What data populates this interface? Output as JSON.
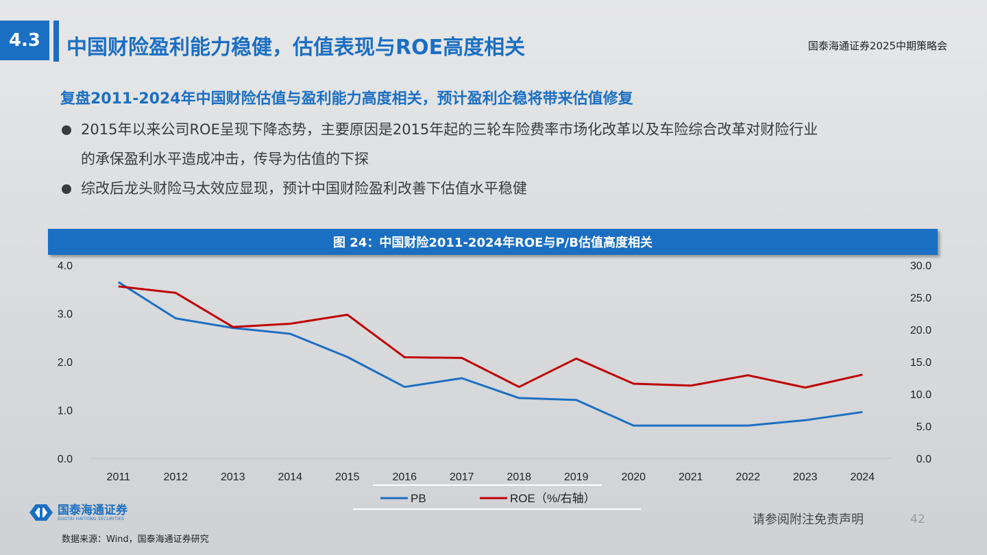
{
  "header": {
    "section_number": "4.3",
    "title": "中国财险盈利能力稳健，估值表现与ROE高度相关",
    "brand_meeting": "国泰海通证券2025中期策略会"
  },
  "subtitle": "复盘2011-2024年中国财险估值与盈利能力高度相关，预计盈利企稳将带来估值修复",
  "bullets": [
    {
      "line1": "2015年以来公司ROE呈现下降态势，主要原因是2015年起的三轮车险费率市场化改革以及车险综合改革对财险行业",
      "line2": "的承保盈利水平造成冲击，传导为估值的下探"
    },
    {
      "line1": "综改后龙头财险马太效应显现，预计中国财险盈利改善下估值水平稳健",
      "line2": ""
    }
  ],
  "chart_title": "图 24：中国财险2011-2024年ROE与P/B估值高度相关",
  "chart_data": {
    "type": "line",
    "title": "图 24：中国财险2011-2024年ROE与P/B估值高度相关",
    "categories": [
      "2011",
      "2012",
      "2013",
      "2014",
      "2015",
      "2016",
      "2017",
      "2018",
      "2019",
      "2020",
      "2021",
      "2022",
      "2023",
      "2024"
    ],
    "series": [
      {
        "name": "PB",
        "axis": "left",
        "color": "#1b6fc2",
        "values": [
          3.65,
          2.9,
          2.7,
          2.58,
          2.1,
          1.48,
          1.66,
          1.25,
          1.21,
          0.68,
          0.68,
          0.68,
          0.79,
          0.96
        ]
      },
      {
        "name": "ROE（%/右轴）",
        "axis": "right",
        "color": "#c00000",
        "values": [
          26.7,
          25.7,
          20.4,
          20.9,
          22.3,
          15.7,
          15.6,
          11.1,
          15.5,
          11.6,
          11.3,
          12.9,
          11.0,
          13.0
        ]
      }
    ],
    "y_left": {
      "min": 0,
      "max": 4,
      "ticks": [
        "0.0",
        "1.0",
        "2.0",
        "3.0",
        "4.0"
      ]
    },
    "y_right": {
      "min": 0,
      "max": 30,
      "ticks": [
        "0.0",
        "5.0",
        "10.0",
        "15.0",
        "20.0",
        "25.0",
        "30.0"
      ]
    },
    "grid": false,
    "legend_position": "bottom"
  },
  "footer": {
    "logo_cn": "国泰海通证券",
    "logo_en": "GUOTAI HAITONG SECURITIES",
    "source": "数据来源：Wind，国泰海通证券研究",
    "disclaimer": "请参阅附注免责声明",
    "page_number": "42"
  }
}
